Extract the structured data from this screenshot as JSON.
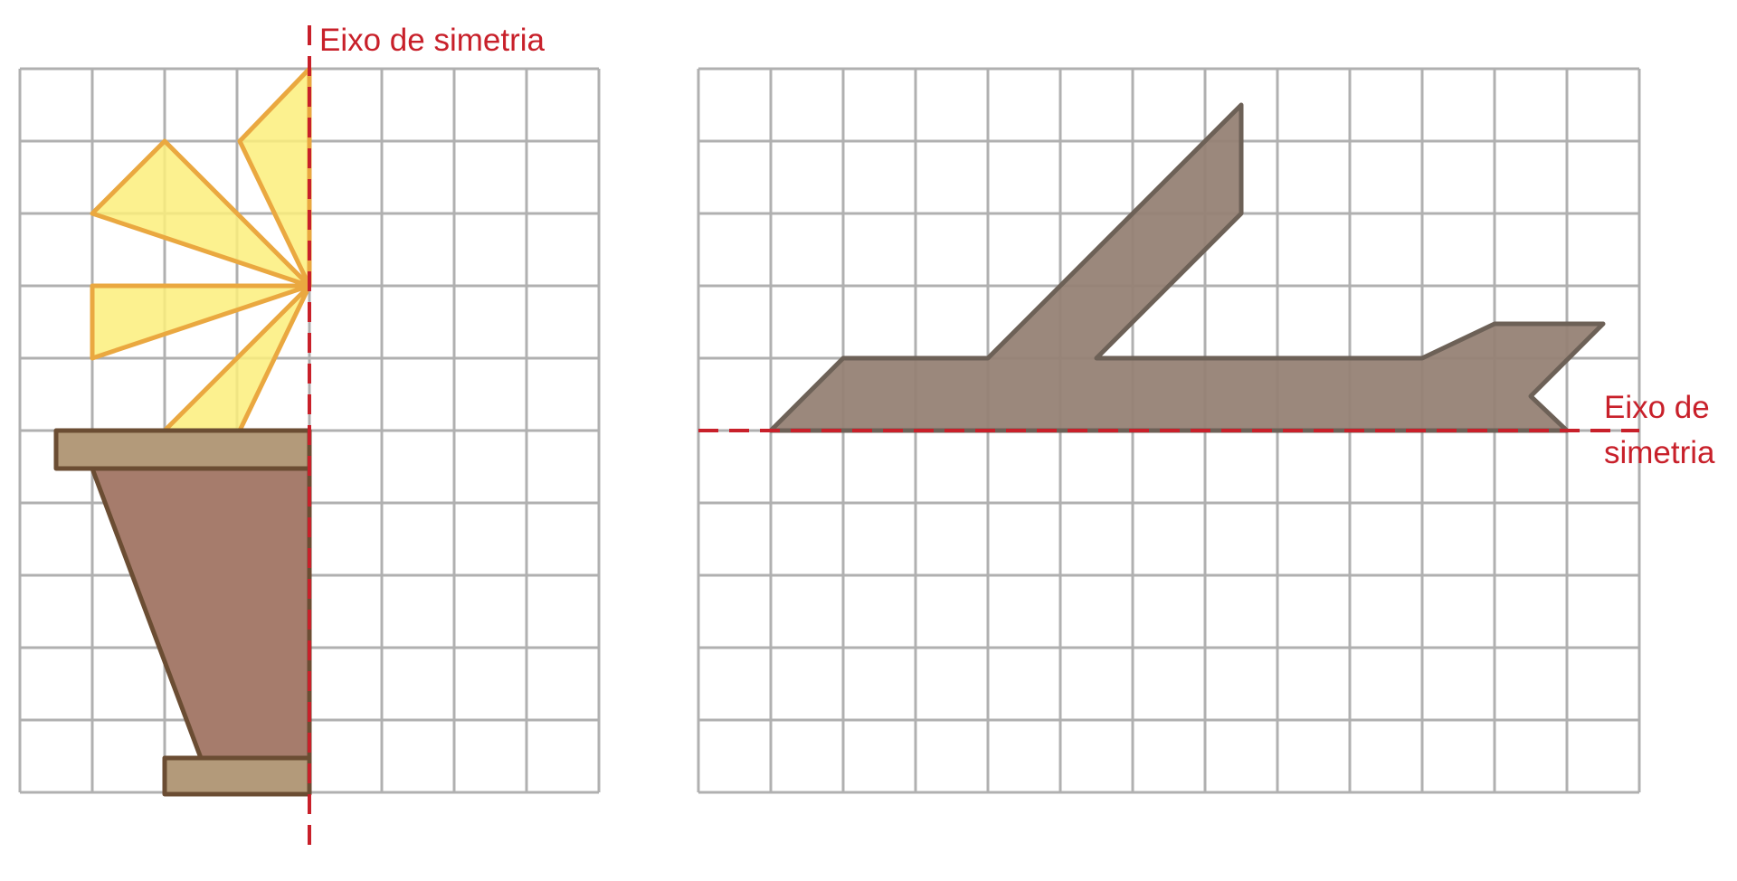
{
  "left_figure": {
    "axis_label": "Eixo de simetria",
    "colors": {
      "petal_fill": "#fbef7b",
      "petal_stroke": "#eaa840",
      "pot_fill": "#a67c6c",
      "pot_stroke": "#6b4d33",
      "rim_fill": "#b39a7a"
    }
  },
  "right_figure": {
    "axis_label_line1": "Eixo de",
    "axis_label_line2": "simetria",
    "colors": {
      "branch_fill": "#968275",
      "branch_stroke": "#6d6157"
    }
  },
  "colors": {
    "grid_line": "#b0b0b0",
    "axis_line": "#c8202a"
  }
}
